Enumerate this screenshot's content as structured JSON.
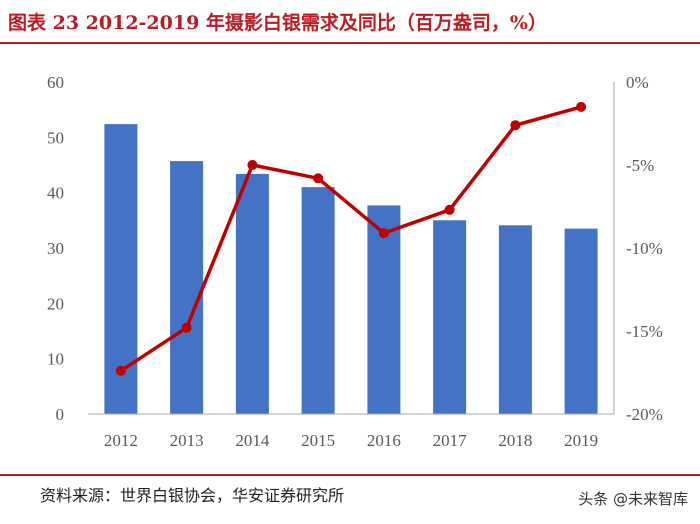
{
  "title": "图表 23 2012-2019 年摄影白银需求及同比（百万盎司，%）",
  "source": "资料来源：世界白银协会，华安证券研究所",
  "watermark": "头条 @未来智库",
  "colors": {
    "bar": "#4472c4",
    "line": "#c00000",
    "accent": "#b81d24",
    "axis": "#a6a6a6"
  },
  "chart_data": {
    "type": "bar+line",
    "categories": [
      "2012",
      "2013",
      "2014",
      "2015",
      "2016",
      "2017",
      "2018",
      "2019"
    ],
    "series": [
      {
        "name": "摄影白银需求",
        "type": "bar",
        "axis": "left",
        "values": [
          52.4,
          45.7,
          43.4,
          41.0,
          37.7,
          35.0,
          34.1,
          33.5
        ]
      },
      {
        "name": "同比",
        "type": "line",
        "axis": "right",
        "values": [
          -17.4,
          -14.8,
          -5.0,
          -5.8,
          -9.1,
          -7.7,
          -2.6,
          -1.5
        ]
      }
    ],
    "left_axis": {
      "ylim": [
        0,
        60
      ],
      "ticks": [
        0,
        10,
        20,
        30,
        40,
        50,
        60
      ],
      "tick_labels": [
        "0",
        "10",
        "20",
        "30",
        "40",
        "50",
        "60"
      ]
    },
    "right_axis": {
      "ylim": [
        -20,
        0
      ],
      "ticks": [
        0,
        -5,
        -10,
        -15,
        -20
      ],
      "tick_labels": [
        "0%",
        "-5%",
        "-10%",
        "-15%",
        "-20%"
      ]
    },
    "legend": "none",
    "grid": false
  }
}
